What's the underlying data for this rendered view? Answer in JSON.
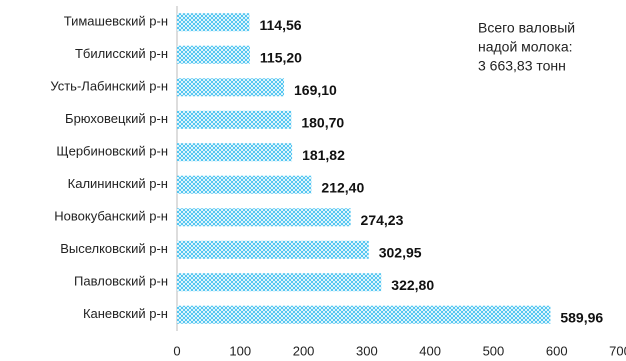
{
  "chart_data": {
    "type": "bar",
    "orientation": "horizontal",
    "categories": [
      "Тимашевский р-н",
      "Тбилисский р-н",
      "Усть-Лабинский р-н",
      "Брюховецкий р-н",
      "Щербиновский р-н",
      "Калининский р-н",
      "Новокубанский р-н",
      "Выселковский р-н",
      "Павловский р-н",
      "Каневский р-н"
    ],
    "values": [
      114.56,
      115.2,
      169.1,
      180.7,
      181.82,
      212.4,
      274.23,
      302.95,
      322.8,
      589.96
    ],
    "value_labels": [
      "114,56",
      "115,20",
      "169,10",
      "180,70",
      "181,82",
      "212,40",
      "274,23",
      "302,95",
      "322,80",
      "589,96"
    ],
    "color": "#33bbee",
    "xlim": [
      0,
      700
    ],
    "xticks": [
      0,
      100,
      200,
      300,
      400,
      500,
      600,
      700
    ],
    "annotation": [
      "Всего валовый",
      "надой молока:",
      "3 663,83 тонн"
    ],
    "grid": false
  }
}
